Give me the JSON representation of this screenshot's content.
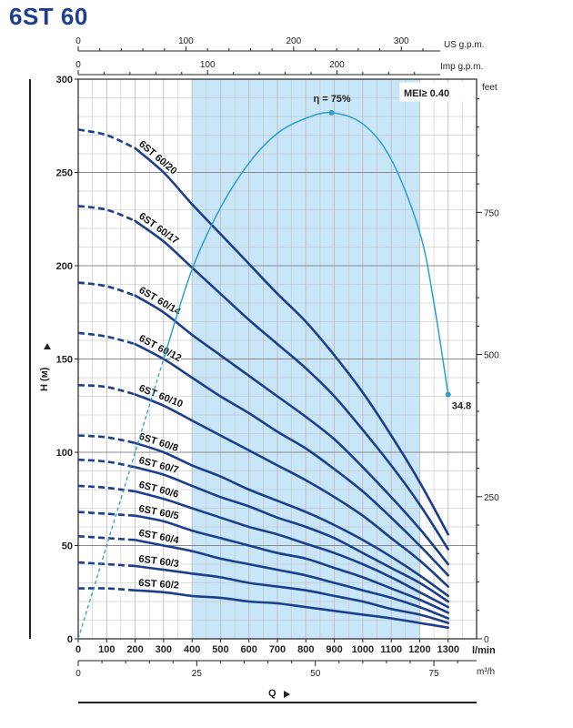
{
  "title": "6ST 60",
  "chart_data": {
    "type": "line",
    "xlabel": "Q",
    "ylabel": "H (м)",
    "x_unit": "l/min",
    "x2_unit": "m³/h",
    "top_axes": [
      {
        "unit": "US g.p.m.",
        "ticks": [
          0,
          100,
          200,
          300
        ]
      },
      {
        "unit": "Imp g.p.m.",
        "ticks": [
          0,
          100,
          200
        ]
      }
    ],
    "right_axis": {
      "unit": "feet",
      "ticks": [
        0,
        250,
        500,
        750
      ]
    },
    "xlim": [
      0,
      1400
    ],
    "ylim": [
      0,
      300
    ],
    "x_ticks": [
      0,
      100,
      200,
      300,
      400,
      500,
      600,
      700,
      800,
      900,
      1000,
      1100,
      1200,
      1300
    ],
    "y_ticks": [
      0,
      50,
      100,
      150,
      200,
      250,
      300
    ],
    "m3h_ticks": [
      0,
      25,
      50,
      75
    ],
    "grid": true,
    "recommended_range": [
      400,
      1200
    ],
    "mei_label": "MEI≥ 0.40",
    "efficiency": {
      "label": "η = 75%",
      "end_label": "34.8",
      "dashed": [
        [
          0,
          0
        ],
        [
          100,
          50
        ],
        [
          200,
          100
        ],
        [
          300,
          150
        ]
      ],
      "points": [
        [
          300,
          150
        ],
        [
          400,
          198
        ],
        [
          500,
          231
        ],
        [
          600,
          255
        ],
        [
          700,
          271
        ],
        [
          800,
          279
        ],
        [
          890,
          282
        ],
        [
          1000,
          276
        ],
        [
          1100,
          257
        ],
        [
          1200,
          218
        ],
        [
          1250,
          180
        ],
        [
          1300,
          131
        ]
      ]
    },
    "series": [
      {
        "name": "6ST 60/20",
        "values": [
          [
            0,
            273
          ],
          [
            100,
            270
          ],
          [
            200,
            263
          ],
          [
            300,
            250
          ],
          [
            400,
            233
          ],
          [
            500,
            217
          ],
          [
            600,
            201
          ],
          [
            700,
            185
          ],
          [
            800,
            170
          ],
          [
            900,
            152
          ],
          [
            1000,
            132
          ],
          [
            1100,
            109
          ],
          [
            1200,
            84
          ],
          [
            1300,
            56
          ]
        ]
      },
      {
        "name": "6ST 60/17",
        "values": [
          [
            0,
            232
          ],
          [
            100,
            230
          ],
          [
            200,
            224
          ],
          [
            300,
            213
          ],
          [
            400,
            199
          ],
          [
            500,
            185
          ],
          [
            600,
            171
          ],
          [
            700,
            158
          ],
          [
            800,
            145
          ],
          [
            900,
            130
          ],
          [
            1000,
            112
          ],
          [
            1100,
            93
          ],
          [
            1200,
            72
          ],
          [
            1300,
            48
          ]
        ]
      },
      {
        "name": "6ST 60/14",
        "values": [
          [
            0,
            191
          ],
          [
            100,
            189
          ],
          [
            200,
            184
          ],
          [
            300,
            175
          ],
          [
            400,
            163
          ],
          [
            500,
            152
          ],
          [
            600,
            141
          ],
          [
            700,
            130
          ],
          [
            800,
            119
          ],
          [
            900,
            107
          ],
          [
            1000,
            92
          ],
          [
            1100,
            76
          ],
          [
            1200,
            59
          ],
          [
            1300,
            40
          ]
        ]
      },
      {
        "name": "6ST 60/12",
        "values": [
          [
            0,
            164
          ],
          [
            100,
            162
          ],
          [
            200,
            158
          ],
          [
            300,
            150
          ],
          [
            400,
            140
          ],
          [
            500,
            130
          ],
          [
            600,
            121
          ],
          [
            700,
            111
          ],
          [
            800,
            102
          ],
          [
            900,
            91
          ],
          [
            1000,
            79
          ],
          [
            1100,
            65
          ],
          [
            1200,
            50
          ],
          [
            1300,
            34
          ]
        ]
      },
      {
        "name": "6ST 60/10",
        "values": [
          [
            0,
            136
          ],
          [
            100,
            135
          ],
          [
            200,
            131
          ],
          [
            300,
            125
          ],
          [
            400,
            117
          ],
          [
            500,
            109
          ],
          [
            600,
            101
          ],
          [
            700,
            93
          ],
          [
            800,
            85
          ],
          [
            900,
            76
          ],
          [
            1000,
            66
          ],
          [
            1100,
            54
          ],
          [
            1200,
            42
          ],
          [
            1300,
            28
          ]
        ]
      },
      {
        "name": "6ST 60/8",
        "values": [
          [
            0,
            109
          ],
          [
            100,
            108
          ],
          [
            200,
            105
          ],
          [
            300,
            100
          ],
          [
            400,
            93
          ],
          [
            500,
            87
          ],
          [
            600,
            80
          ],
          [
            700,
            74
          ],
          [
            800,
            68
          ],
          [
            900,
            61
          ],
          [
            1000,
            53
          ],
          [
            1100,
            44
          ],
          [
            1200,
            34
          ],
          [
            1300,
            23
          ]
        ]
      },
      {
        "name": "6ST 60/7",
        "values": [
          [
            0,
            96
          ],
          [
            100,
            95
          ],
          [
            200,
            92
          ],
          [
            300,
            88
          ],
          [
            400,
            82
          ],
          [
            500,
            76
          ],
          [
            600,
            71
          ],
          [
            700,
            65
          ],
          [
            800,
            60
          ],
          [
            900,
            54
          ],
          [
            1000,
            46
          ],
          [
            1100,
            38
          ],
          [
            1200,
            30
          ],
          [
            1300,
            20
          ]
        ]
      },
      {
        "name": "6ST 60/6",
        "values": [
          [
            0,
            82
          ],
          [
            100,
            81
          ],
          [
            200,
            79
          ],
          [
            300,
            75
          ],
          [
            400,
            70
          ],
          [
            500,
            65
          ],
          [
            600,
            60
          ],
          [
            700,
            56
          ],
          [
            800,
            51
          ],
          [
            900,
            46
          ],
          [
            1000,
            40
          ],
          [
            1100,
            33
          ],
          [
            1200,
            25
          ],
          [
            1300,
            17
          ]
        ]
      },
      {
        "name": "6ST 60/5",
        "values": [
          [
            0,
            68
          ],
          [
            100,
            67
          ],
          [
            200,
            66
          ],
          [
            300,
            63
          ],
          [
            400,
            58
          ],
          [
            500,
            54
          ],
          [
            600,
            50
          ],
          [
            700,
            46
          ],
          [
            800,
            43
          ],
          [
            900,
            38
          ],
          [
            1000,
            33
          ],
          [
            1100,
            27
          ],
          [
            1200,
            21
          ],
          [
            1300,
            14
          ]
        ]
      },
      {
        "name": "6ST 60/4",
        "values": [
          [
            0,
            55
          ],
          [
            100,
            54
          ],
          [
            200,
            53
          ],
          [
            300,
            50
          ],
          [
            400,
            47
          ],
          [
            500,
            43
          ],
          [
            600,
            40
          ],
          [
            700,
            37
          ],
          [
            800,
            34
          ],
          [
            900,
            30
          ],
          [
            1000,
            26
          ],
          [
            1100,
            22
          ],
          [
            1200,
            17
          ],
          [
            1300,
            11
          ]
        ]
      },
      {
        "name": "6ST 60/3",
        "values": [
          [
            0,
            41
          ],
          [
            100,
            40
          ],
          [
            200,
            39
          ],
          [
            300,
            37
          ],
          [
            400,
            35
          ],
          [
            500,
            33
          ],
          [
            600,
            30
          ],
          [
            700,
            28
          ],
          [
            800,
            26
          ],
          [
            900,
            23
          ],
          [
            1000,
            20
          ],
          [
            1100,
            16
          ],
          [
            1200,
            13
          ],
          [
            1300,
            8.5
          ]
        ]
      },
      {
        "name": "6ST 60/2",
        "values": [
          [
            0,
            27
          ],
          [
            100,
            27
          ],
          [
            200,
            26
          ],
          [
            300,
            25
          ],
          [
            400,
            23
          ],
          [
            500,
            22
          ],
          [
            600,
            20
          ],
          [
            700,
            19
          ],
          [
            800,
            17
          ],
          [
            900,
            15
          ],
          [
            1000,
            13
          ],
          [
            1100,
            11
          ],
          [
            1200,
            8.5
          ],
          [
            1300,
            6
          ]
        ]
      }
    ],
    "colors": {
      "curve": "#1b3f8c",
      "efficiency": "#2a9fd0",
      "band": "#c9e6f8",
      "grid": "#bdbdbd",
      "title": "#1b3f8c"
    }
  }
}
